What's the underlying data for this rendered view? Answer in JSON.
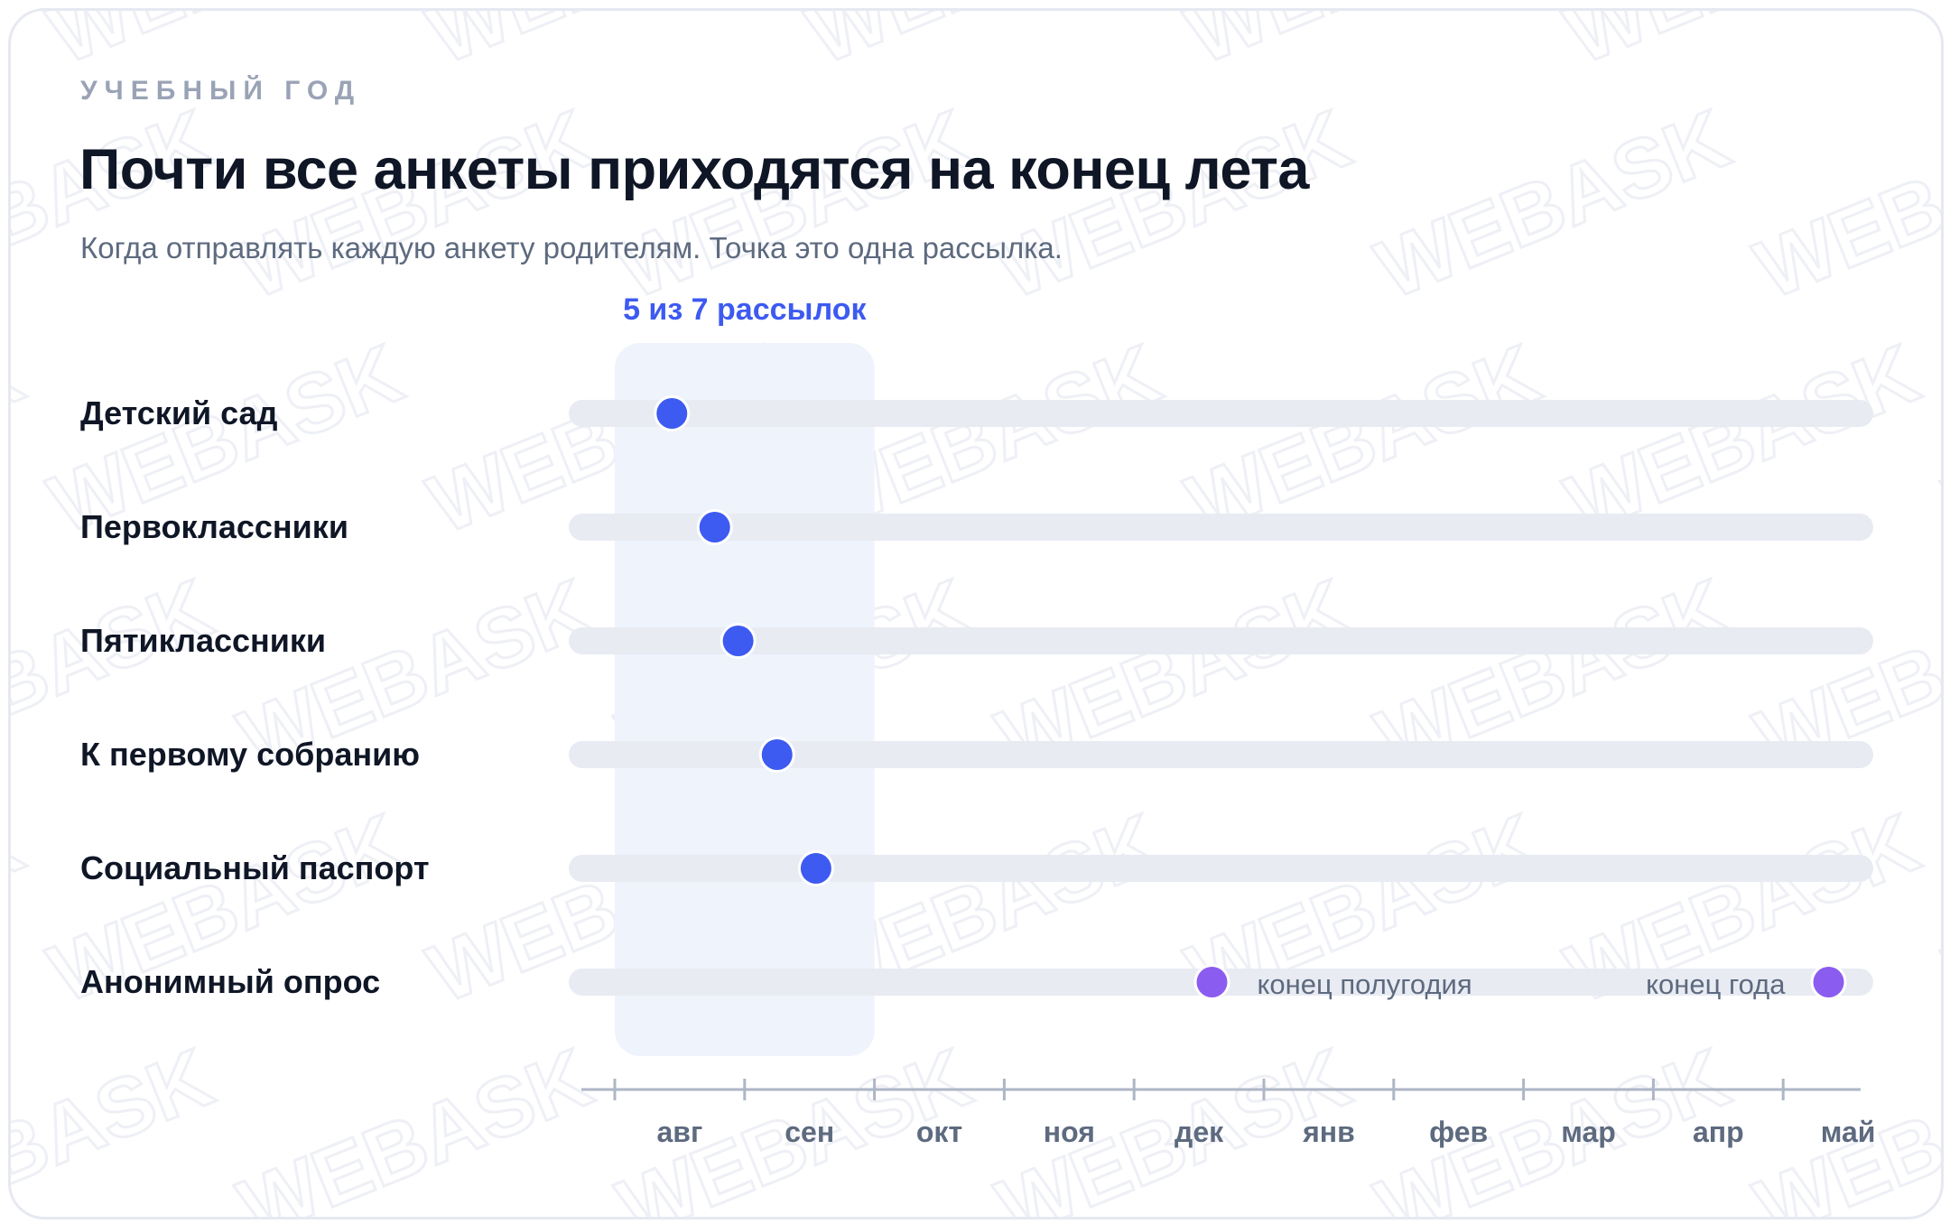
{
  "header": {
    "eyebrow": "УЧЕБНЫЙ ГОД",
    "title": "Почти все анкеты приходятся на конец лета",
    "subtitle": "Когда отправлять каждую анкету родителям. Точка это одна рассылка."
  },
  "colors": {
    "primary_dot": "#3d5af1",
    "secondary_dot": "#8b5cf0",
    "track": "#e8ebf2",
    "highlight": "#eef3fc",
    "highlight_label": "#3d5af1",
    "axis": "#aeb6c6",
    "tick_label": "#5d6a7f"
  },
  "watermark": {
    "text": "WEBASK"
  },
  "chart_data": {
    "type": "scatter",
    "x_axis": {
      "tick_labels": [
        "авг",
        "сен",
        "окт",
        "ноя",
        "дек",
        "янв",
        "фев",
        "мар",
        "апр",
        "май"
      ],
      "range_months": [
        0,
        10
      ]
    },
    "highlight": {
      "label": "5 из 7 рассылок",
      "x_range_months": [
        0,
        2
      ]
    },
    "rows": [
      {
        "label": "Детский сад",
        "points": [
          {
            "x": 0.44,
            "kind": "primary"
          }
        ]
      },
      {
        "label": "Первоклассники",
        "points": [
          {
            "x": 0.77,
            "kind": "primary"
          }
        ]
      },
      {
        "label": "Пятиклассники",
        "points": [
          {
            "x": 0.95,
            "kind": "primary"
          }
        ]
      },
      {
        "label": "К первому собранию",
        "points": [
          {
            "x": 1.25,
            "kind": "primary"
          }
        ]
      },
      {
        "label": "Социальный паспорт",
        "points": [
          {
            "x": 1.55,
            "kind": "primary"
          }
        ]
      },
      {
        "label": "Анонимный опрос",
        "points": [
          {
            "x": 4.6,
            "kind": "secondary",
            "annotation": "конец полугодия",
            "annotation_side": "right"
          },
          {
            "x": 9.35,
            "kind": "secondary",
            "annotation": "конец года",
            "annotation_side": "left"
          }
        ]
      }
    ]
  }
}
